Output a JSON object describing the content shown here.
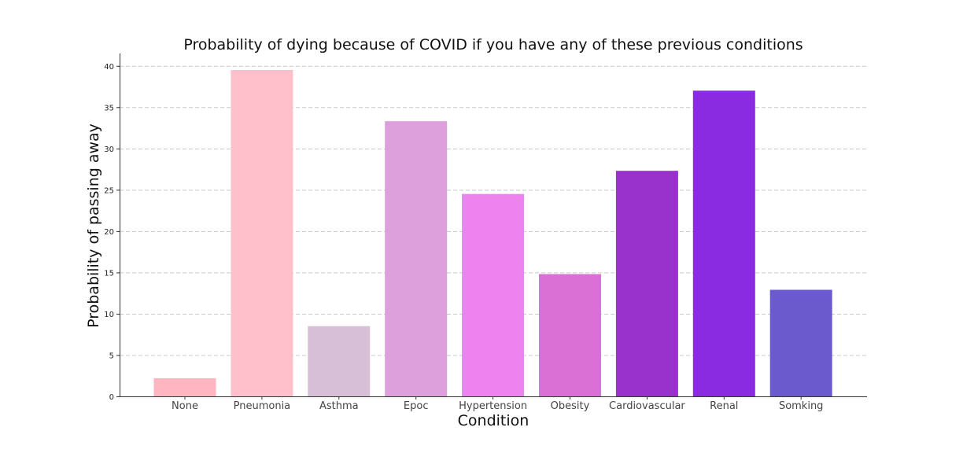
{
  "chart_data": {
    "type": "bar",
    "title": "Probability of dying because of COVID if you have any of these previous conditions",
    "xlabel": "Condition",
    "ylabel": "Probability of passing away",
    "categories": [
      "None",
      "Pneumonia",
      "Asthma",
      "Epoc",
      "Hypertension",
      "Obesity",
      "Cardiovascular",
      "Renal",
      "Somking"
    ],
    "values": [
      2.2,
      39.5,
      8.5,
      33.3,
      24.5,
      14.8,
      27.3,
      37.0,
      12.9
    ],
    "colors": [
      "#ffb6c1",
      "#ffc0cb",
      "#d8bfd8",
      "#dda0dd",
      "#ee82ee",
      "#da70d6",
      "#9932cc",
      "#8a2be2",
      "#6a5acd"
    ],
    "ylim": [
      0,
      41.5
    ],
    "yticks": [
      0,
      5,
      10,
      15,
      20,
      25,
      30,
      35,
      40
    ],
    "grid": "y-dashed",
    "legend": "none"
  }
}
